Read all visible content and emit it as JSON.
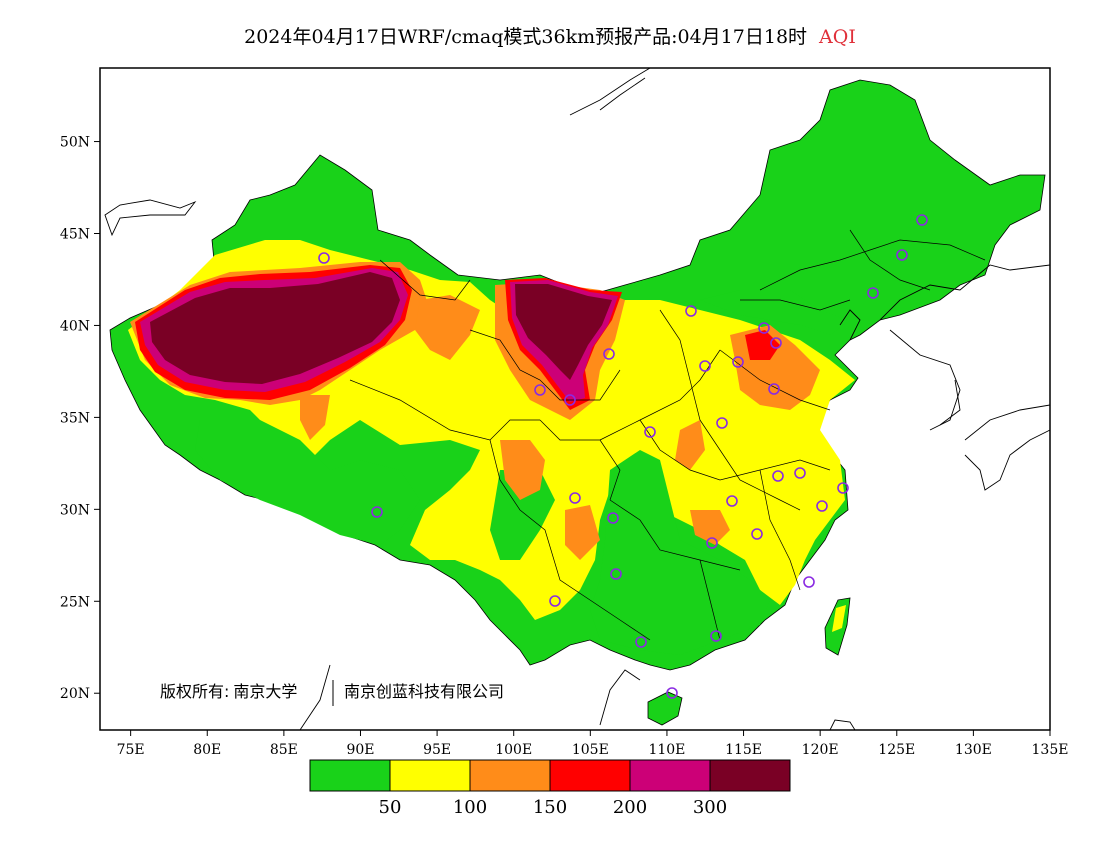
{
  "title": {
    "main": "2024年04月17日WRF/cmaq模式36km预报产品:04月17日18时",
    "field": "AQI"
  },
  "axes": {
    "lat_labels": [
      "50N",
      "45N",
      "40N",
      "35N",
      "30N",
      "25N",
      "20N"
    ],
    "lon_labels": [
      "75E",
      "80E",
      "85E",
      "90E",
      "95E",
      "100E",
      "105E",
      "110E",
      "115E",
      "120E",
      "125E",
      "130E",
      "135E"
    ],
    "lat_range": [
      18,
      54
    ],
    "lon_range": [
      73,
      135
    ]
  },
  "copyright": {
    "prefix": "版权所有:",
    "org1": "南京大学",
    "org2": "南京创蓝科技有限公司"
  },
  "colorbar": {
    "colors": [
      "#19d219",
      "#ffff00",
      "#ff8c19",
      "#ff0000",
      "#cc0077",
      "#7a0025"
    ],
    "labels": [
      "50",
      "100",
      "150",
      "200",
      "300"
    ]
  },
  "station_marker_color": "#8a2be2"
}
